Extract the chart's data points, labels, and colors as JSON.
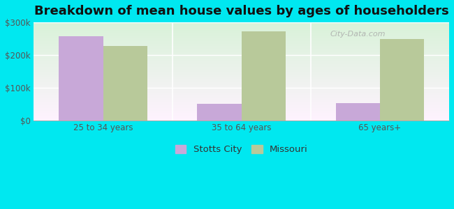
{
  "title": "Breakdown of mean house values by ages of householders",
  "categories": [
    "25 to 34 years",
    "35 to 64 years",
    "65 years+"
  ],
  "stotts_city_values": [
    258000,
    50000,
    52000
  ],
  "missouri_values": [
    228000,
    272000,
    248000
  ],
  "stotts_city_color": "#c8a8d8",
  "missouri_color": "#b8c99a",
  "background_color": "#00e8f0",
  "ylim": [
    0,
    300000
  ],
  "yticks": [
    0,
    100000,
    200000,
    300000
  ],
  "ytick_labels": [
    "$0",
    "$100k",
    "$200k",
    "$300k"
  ],
  "legend_labels": [
    "Stotts City",
    "Missouri"
  ],
  "title_fontsize": 13,
  "tick_fontsize": 8.5,
  "legend_fontsize": 9.5,
  "bar_width": 0.32,
  "watermark": "City-Data.com"
}
